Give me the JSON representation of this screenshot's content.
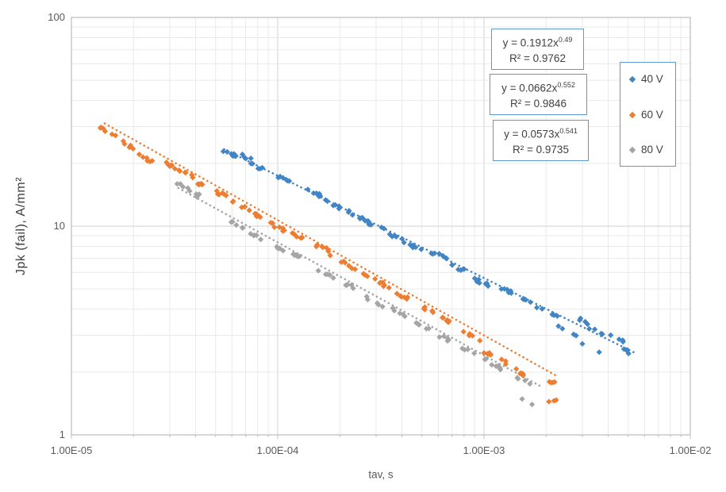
{
  "chart_data": {
    "type": "scatter",
    "title": "",
    "x_axis": {
      "label": "tav, s",
      "scale": "log",
      "range": [
        1e-05,
        0.01
      ],
      "ticks": [
        "1.00E-05",
        "1.00E-04",
        "1.00E-03",
        "1.00E-02"
      ],
      "grid": "minor+major"
    },
    "y_axis": {
      "label": "Jpk (fail),  A/mm²",
      "scale": "log",
      "range": [
        1,
        100
      ],
      "ticks": [
        "1",
        "10",
        "100"
      ],
      "grid": "minor+major"
    },
    "legend_position": "right",
    "clusters_schema": "[tav_s, jpk_A_per_mm2, approx_point_count]",
    "series": [
      {
        "name": "40 V",
        "color": "#4285c4",
        "marker": "diamond",
        "trendline": {
          "a": 0.1912,
          "b": -0.49,
          "style": "dotted",
          "x_range": [
            5.5e-05,
            0.0055
          ]
        },
        "equation": {
          "prefix": "y = 0.1912x",
          "exponent": "0.49",
          "r2": "R² = 0.9762"
        },
        "clusters": [
          [
            5.8e-05,
            22.6,
            8
          ],
          [
            7e-05,
            21.5,
            4
          ],
          [
            8.2e-05,
            19.0,
            5
          ],
          [
            0.000105,
            16.8,
            6
          ],
          [
            0.00015,
            14.4,
            7
          ],
          [
            0.00019,
            12.5,
            6
          ],
          [
            0.00024,
            11.3,
            8
          ],
          [
            0.0003,
            10.0,
            7
          ],
          [
            0.00037,
            8.9,
            6
          ],
          [
            0.00046,
            7.9,
            5
          ],
          [
            0.0006,
            7.3,
            8
          ],
          [
            0.00075,
            6.3,
            6
          ],
          [
            0.001,
            5.3,
            7
          ],
          [
            0.0013,
            4.9,
            6
          ],
          [
            0.00165,
            4.3,
            6
          ],
          [
            0.0021,
            3.8,
            5
          ],
          [
            0.0025,
            3.2,
            4
          ],
          [
            0.0029,
            3.6,
            4
          ],
          [
            0.0034,
            3.2,
            4
          ],
          [
            0.0033,
            2.6,
            2
          ],
          [
            0.0044,
            2.9,
            4
          ],
          [
            0.005,
            2.5,
            4
          ]
        ]
      },
      {
        "name": "60 V",
        "color": "#ed7d31",
        "marker": "diamond",
        "trendline": {
          "a": 0.0662,
          "b": -0.552,
          "style": "dotted",
          "x_range": [
            1.45e-05,
            0.0023
          ]
        },
        "equation": {
          "prefix": "y = 0.0662x",
          "exponent": "0.552",
          "r2": "R² = 0.9846"
        },
        "clusters": [
          [
            1.5e-05,
            28.5,
            6
          ],
          [
            1.8e-05,
            25.0,
            5
          ],
          [
            2.3e-05,
            21.0,
            6
          ],
          [
            2.9e-05,
            19.8,
            6
          ],
          [
            3.6e-05,
            17.8,
            6
          ],
          [
            4.4e-05,
            15.6,
            6
          ],
          [
            5.5e-05,
            14.0,
            6
          ],
          [
            6.6e-05,
            12.5,
            5
          ],
          [
            8e-05,
            11.3,
            6
          ],
          [
            0.0001,
            9.9,
            7
          ],
          [
            0.000125,
            8.9,
            6
          ],
          [
            0.00016,
            8.0,
            7
          ],
          [
            0.0002,
            6.8,
            6
          ],
          [
            0.00025,
            6.0,
            6
          ],
          [
            0.00032,
            5.3,
            7
          ],
          [
            0.00041,
            4.6,
            6
          ],
          [
            0.00053,
            4.0,
            6
          ],
          [
            0.00068,
            3.5,
            6
          ],
          [
            0.00087,
            3.0,
            5
          ],
          [
            0.00105,
            2.45,
            6
          ],
          [
            0.0013,
            2.2,
            4
          ],
          [
            0.0016,
            1.9,
            5
          ],
          [
            0.00215,
            1.8,
            4
          ],
          [
            0.0021,
            1.5,
            2
          ],
          [
            0.0022,
            1.43,
            1
          ]
        ]
      },
      {
        "name": "80 V",
        "color": "#a5a5a5",
        "marker": "diamond",
        "trendline": {
          "a": 0.0573,
          "b": -0.541,
          "style": "dotted",
          "x_range": [
            3.3e-05,
            0.0019
          ]
        },
        "equation": {
          "prefix": "y = 0.0573x",
          "exponent": "0.541",
          "r2": "R² = 0.9735"
        },
        "clusters": [
          [
            3.5e-05,
            15.5,
            5
          ],
          [
            4.2e-05,
            13.9,
            4
          ],
          [
            6.5e-05,
            10.1,
            5
          ],
          [
            8e-05,
            8.9,
            5
          ],
          [
            0.000105,
            7.8,
            4
          ],
          [
            0.00013,
            7.0,
            5
          ],
          [
            0.00017,
            5.9,
            5
          ],
          [
            0.00022,
            5.2,
            5
          ],
          [
            0.00029,
            4.4,
            5
          ],
          [
            0.00038,
            3.9,
            5
          ],
          [
            0.0005,
            3.3,
            5
          ],
          [
            0.00065,
            2.9,
            5
          ],
          [
            0.00085,
            2.5,
            4
          ],
          [
            0.0011,
            2.2,
            4
          ],
          [
            0.00125,
            2.05,
            4
          ],
          [
            0.0016,
            1.78,
            4
          ],
          [
            0.00165,
            1.45,
            2
          ]
        ]
      }
    ],
    "colors": {
      "grid_minor": "#e9e9e9",
      "grid_major": "#d2d2d2",
      "plot_border": "#c0c0c0",
      "tick_text": "#595959",
      "label_text": "#3d3d3d",
      "box_border": "#5b9bd5"
    }
  }
}
